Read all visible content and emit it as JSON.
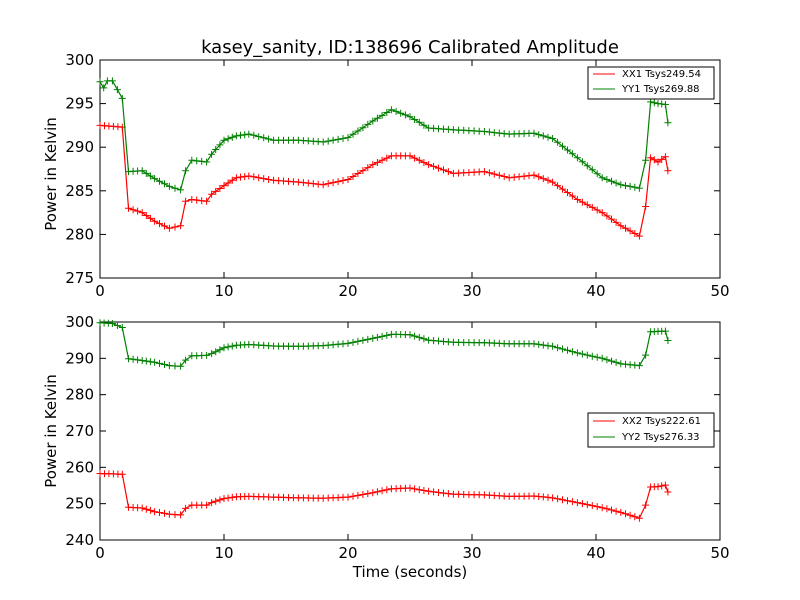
{
  "chart_data": [
    {
      "type": "line",
      "title": "kasey_sanity, ID:138696 Calibrated Amplitude",
      "xlabel": "",
      "ylabel": "Power in Kelvin",
      "xlim": [
        0,
        50
      ],
      "ylim": [
        275,
        300
      ],
      "xticks": [
        0,
        10,
        20,
        30,
        40,
        50
      ],
      "yticks": [
        275,
        280,
        285,
        290,
        295,
        300
      ],
      "grid": false,
      "legend_position": "top-right",
      "series": [
        {
          "name": "XX1 Tsys249.54",
          "color": "#ff0000",
          "x": [
            0,
            1.8,
            2.3,
            3.4,
            4.4,
            5.6,
            6.5,
            6.9,
            7.4,
            8.6,
            9.0,
            10.0,
            11.0,
            12.0,
            14.0,
            16.0,
            18.0,
            20.0,
            22.0,
            23.5,
            25.0,
            26.5,
            28.5,
            31.0,
            33.0,
            35.0,
            36.5,
            38.5,
            40.5,
            42.0,
            43.5,
            44.0,
            44.4,
            45.0,
            45.6,
            45.8
          ],
          "y": [
            292.5,
            292.3,
            283.0,
            282.5,
            281.5,
            280.7,
            281.0,
            283.8,
            284.0,
            283.8,
            284.6,
            285.6,
            286.5,
            286.7,
            286.2,
            286.0,
            285.7,
            286.3,
            288.0,
            289.0,
            289.0,
            288.0,
            287.0,
            287.2,
            286.5,
            286.8,
            286.0,
            284.0,
            282.5,
            281.0,
            279.8,
            283.2,
            288.8,
            288.3,
            288.9,
            287.3
          ]
        },
        {
          "name": "YY1 Tsys269.88",
          "color": "#008000",
          "x": [
            0,
            0.3,
            0.6,
            1.0,
            1.8,
            2.3,
            3.4,
            4.4,
            5.6,
            6.5,
            6.9,
            7.4,
            8.6,
            9.0,
            10.0,
            11.0,
            12.0,
            14.0,
            16.0,
            18.0,
            20.0,
            22.0,
            23.5,
            25.0,
            26.5,
            28.5,
            31.0,
            33.0,
            35.0,
            36.5,
            38.5,
            40.5,
            42.0,
            43.5,
            44.0,
            44.4,
            45.0,
            45.6,
            45.8
          ],
          "y": [
            297.5,
            296.8,
            297.6,
            297.6,
            295.6,
            287.2,
            287.3,
            286.4,
            285.5,
            285.1,
            287.3,
            288.5,
            288.3,
            289.2,
            290.8,
            291.3,
            291.5,
            290.8,
            290.8,
            290.6,
            291.1,
            293.0,
            294.3,
            293.5,
            292.2,
            292.0,
            291.8,
            291.5,
            291.6,
            291.0,
            288.8,
            286.5,
            285.7,
            285.3,
            288.5,
            295.2,
            295.0,
            294.9,
            292.8
          ]
        }
      ]
    },
    {
      "type": "line",
      "title": "",
      "xlabel": "Time (seconds)",
      "ylabel": "Power in Kelvin",
      "xlim": [
        0,
        50
      ],
      "ylim": [
        240,
        300
      ],
      "xticks": [
        0,
        10,
        20,
        30,
        40,
        50
      ],
      "yticks": [
        240,
        250,
        260,
        270,
        280,
        290,
        300
      ],
      "grid": false,
      "legend_position": "center-right",
      "series": [
        {
          "name": "XX2 Tsys222.61",
          "color": "#ff0000",
          "x": [
            0,
            1.8,
            2.3,
            3.4,
            4.4,
            5.6,
            6.5,
            6.9,
            7.4,
            8.6,
            9.0,
            10.0,
            11.0,
            12.0,
            14.0,
            16.0,
            18.0,
            20.0,
            22.0,
            23.5,
            25.0,
            26.5,
            28.5,
            31.0,
            33.0,
            35.0,
            36.5,
            38.5,
            40.5,
            42.0,
            43.5,
            44.0,
            44.4,
            45.0,
            45.6,
            45.8
          ],
          "y": [
            258.3,
            258.1,
            249.0,
            248.8,
            247.8,
            247.1,
            246.9,
            248.7,
            249.6,
            249.6,
            250.3,
            251.4,
            251.9,
            252.0,
            251.8,
            251.6,
            251.5,
            251.8,
            253.0,
            254.1,
            254.3,
            253.4,
            252.6,
            252.4,
            252.0,
            252.1,
            251.6,
            250.3,
            248.9,
            247.6,
            246.0,
            249.6,
            254.6,
            254.7,
            255.1,
            253.2
          ]
        },
        {
          "name": "YY2 Tsys276.33",
          "color": "#008000",
          "x": [
            0,
            1.0,
            1.8,
            2.3,
            3.4,
            4.4,
            5.6,
            6.5,
            6.9,
            7.4,
            8.6,
            9.0,
            10.0,
            11.0,
            12.0,
            14.0,
            16.0,
            18.0,
            20.0,
            22.0,
            23.5,
            25.0,
            26.5,
            28.5,
            31.0,
            33.0,
            35.0,
            36.5,
            38.5,
            40.5,
            42.0,
            43.5,
            44.0,
            44.4,
            45.0,
            45.6,
            45.8
          ],
          "y": [
            299.8,
            299.6,
            298.5,
            289.9,
            289.4,
            288.9,
            288.0,
            287.8,
            289.5,
            290.7,
            290.8,
            291.3,
            292.9,
            293.6,
            293.8,
            293.4,
            293.3,
            293.5,
            294.1,
            295.5,
            296.6,
            296.5,
            295.0,
            294.4,
            294.3,
            294.0,
            294.0,
            293.3,
            291.5,
            290.0,
            288.5,
            288.0,
            290.9,
            297.3,
            297.4,
            297.5,
            294.9
          ]
        }
      ]
    }
  ]
}
